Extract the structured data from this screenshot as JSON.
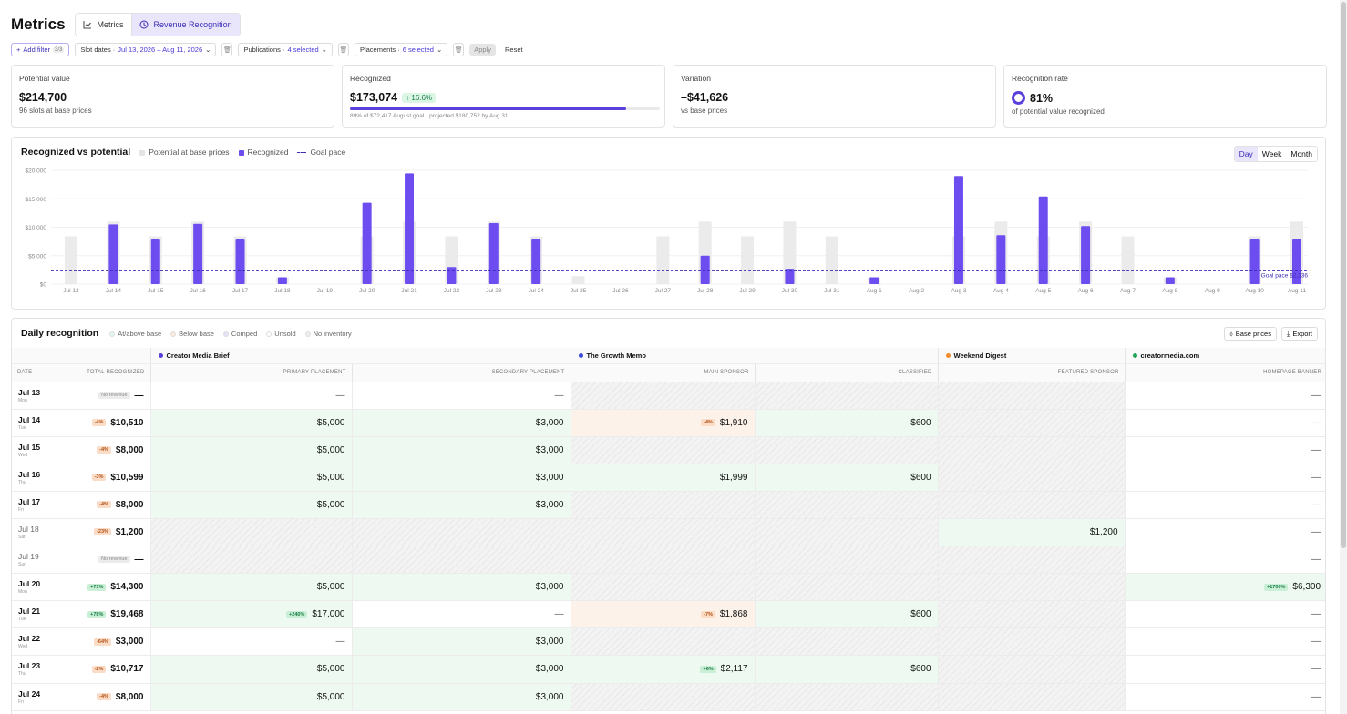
{
  "header": {
    "title": "Metrics",
    "tabs": [
      {
        "label": "Metrics",
        "icon": "line-chart-icon"
      },
      {
        "label": "Revenue Recognition",
        "icon": "clock-icon"
      }
    ]
  },
  "filters": {
    "add_filter": "Add filter",
    "add_filter_count": "3/3",
    "slot_dates_label": "Slot dates ·",
    "slot_dates_value": "Jul 13, 2026 – Aug 11, 2026",
    "publications_label": "Publications ·",
    "publications_value": "4 selected",
    "placements_label": "Placements ·",
    "placements_value": "6 selected",
    "apply": "Apply",
    "reset": "Reset"
  },
  "kpis": {
    "potential": {
      "label": "Potential value",
      "value": "$214,700",
      "sub": "96 slots at base prices"
    },
    "recognized": {
      "label": "Recognized",
      "value": "$173,074",
      "change": "↑ 16.6%",
      "progress": 0.89,
      "note": "89% of $72,417 August goal · projected $180,752 by Aug 31"
    },
    "variation": {
      "label": "Variation",
      "value": "–$41,626",
      "sub": "vs base prices"
    },
    "rate": {
      "label": "Recognition rate",
      "value": "81%",
      "sub": "of potential value recognized"
    }
  },
  "chart_header": {
    "title": "Recognized vs potential",
    "legend": {
      "potential": "Potential at base prices",
      "recognized": "Recognized",
      "goal": "Goal pace"
    },
    "period": {
      "day": "Day",
      "week": "Week",
      "month": "Month"
    }
  },
  "chart_data": {
    "type": "bar",
    "categories": [
      "Jul 13",
      "Jul 14",
      "Jul 15",
      "Jul 16",
      "Jul 17",
      "Jul 18",
      "Jul 19",
      "Jul 20",
      "Jul 21",
      "Jul 22",
      "Jul 23",
      "Jul 24",
      "Jul 25",
      "Jul 26",
      "Jul 27",
      "Jul 28",
      "Jul 29",
      "Jul 30",
      "Jul 31",
      "Aug 1",
      "Aug 2",
      "Aug 3",
      "Aug 4",
      "Aug 5",
      "Aug 6",
      "Aug 7",
      "Aug 8",
      "Aug 9",
      "Aug 10",
      "Aug 11"
    ],
    "series": [
      {
        "name": "Potential at base prices",
        "values": [
          8400,
          11000,
          8400,
          11000,
          8400,
          1200,
          0,
          8400,
          11000,
          8400,
          11000,
          8400,
          1400,
          0,
          8400,
          11000,
          8400,
          11000,
          8400,
          1200,
          0,
          8400,
          11000,
          8400,
          11000,
          8400,
          1200,
          0,
          8400,
          11000
        ]
      },
      {
        "name": "Recognized",
        "values": [
          0,
          10510,
          8000,
          10599,
          8000,
          1200,
          0,
          14300,
          19468,
          3000,
          10717,
          8000,
          0,
          0,
          0,
          5000,
          0,
          2700,
          0,
          1200,
          0,
          19000,
          8600,
          15400,
          10200,
          0,
          1200,
          0,
          8000,
          8000
        ]
      }
    ],
    "goal_pace": 2336,
    "goal_label": "Goal pace $2,336",
    "y_ticks": [
      "$0",
      "$5,000",
      "$10,000",
      "$15,000",
      "$20,000"
    ],
    "ylim": [
      0,
      20000
    ],
    "colors": {
      "potential": "#ebebeb",
      "recognized": "#6d4cf0",
      "goal": "#3d2eb8"
    }
  },
  "table": {
    "title": "Daily recognition",
    "legend": [
      "At/above base",
      "Below base",
      "Comped",
      "Unsold",
      "No inventory"
    ],
    "buttons": {
      "base_prices": "Base prices",
      "export": "Export"
    },
    "publications": [
      {
        "name": "Creator Media Brief",
        "color": "#5b3fdc"
      },
      {
        "name": "The Growth Memo",
        "color": "#3b4bd8"
      },
      {
        "name": "Weekend Digest",
        "color": "#f28c28"
      },
      {
        "name": "creatormedia.com",
        "color": "#22a55b"
      }
    ],
    "columns": [
      "Date",
      "Total recognized",
      "Primary placement",
      "Secondary placement",
      "Main sponsor",
      "Classified",
      "Featured sponsor",
      "Homepage banner"
    ],
    "rows": [
      {
        "date": "Jul 13",
        "dow": "Mon",
        "tag": "No revenue",
        "tagType": "none",
        "total": "—",
        "cells": [
          [
            "—",
            "white"
          ],
          [
            "—",
            "white"
          ],
          [
            "",
            "hatch"
          ],
          [
            "",
            "hatch"
          ],
          [
            "",
            "hatch"
          ],
          [
            "—",
            "white"
          ]
        ]
      },
      {
        "date": "Jul 14",
        "dow": "Tue",
        "tag": "-4%",
        "tagType": "down",
        "total": "$10,510",
        "cells": [
          [
            "$5,000",
            "green"
          ],
          [
            "$3,000",
            "green"
          ],
          [
            "$1,910",
            "orange",
            "-4%"
          ],
          [
            "$600",
            "green"
          ],
          [
            "",
            "hatch"
          ],
          [
            "—",
            "white"
          ]
        ]
      },
      {
        "date": "Jul 15",
        "dow": "Wed",
        "tag": "-4%",
        "tagType": "down",
        "total": "$8,000",
        "cells": [
          [
            "$5,000",
            "green"
          ],
          [
            "$3,000",
            "green"
          ],
          [
            "",
            "hatch"
          ],
          [
            "",
            "hatch"
          ],
          [
            "",
            "hatch"
          ],
          [
            "—",
            "white"
          ]
        ]
      },
      {
        "date": "Jul 16",
        "dow": "Thu",
        "tag": "-3%",
        "tagType": "down",
        "total": "$10,599",
        "cells": [
          [
            "$5,000",
            "green"
          ],
          [
            "$3,000",
            "green"
          ],
          [
            "$1,999",
            "green"
          ],
          [
            "$600",
            "green"
          ],
          [
            "",
            "hatch"
          ],
          [
            "—",
            "white"
          ]
        ]
      },
      {
        "date": "Jul 17",
        "dow": "Fri",
        "tag": "-4%",
        "tagType": "down",
        "total": "$8,000",
        "cells": [
          [
            "$5,000",
            "green"
          ],
          [
            "$3,000",
            "green"
          ],
          [
            "",
            "hatch"
          ],
          [
            "",
            "hatch"
          ],
          [
            "",
            "hatch"
          ],
          [
            "—",
            "white"
          ]
        ]
      },
      {
        "date": "Jul 18",
        "dow": "Sat",
        "tag": "-23%",
        "tagType": "down",
        "total": "$1,200",
        "muted": true,
        "cells": [
          [
            "",
            "hatch"
          ],
          [
            "",
            "hatch"
          ],
          [
            "",
            "hatch"
          ],
          [
            "",
            "hatch"
          ],
          [
            "$1,200",
            "green"
          ],
          [
            "—",
            "white"
          ]
        ]
      },
      {
        "date": "Jul 19",
        "dow": "Sun",
        "tag": "No revenue",
        "tagType": "none",
        "total": "—",
        "muted": true,
        "cells": [
          [
            "",
            "hatch"
          ],
          [
            "",
            "hatch"
          ],
          [
            "",
            "hatch"
          ],
          [
            "",
            "hatch"
          ],
          [
            "",
            "hatch"
          ],
          [
            "—",
            "white"
          ]
        ]
      },
      {
        "date": "Jul 20",
        "dow": "Mon",
        "tag": "+71%",
        "tagType": "up",
        "total": "$14,300",
        "cells": [
          [
            "$5,000",
            "green"
          ],
          [
            "$3,000",
            "green"
          ],
          [
            "",
            "hatch"
          ],
          [
            "",
            "hatch"
          ],
          [
            "",
            "hatch"
          ],
          [
            "$6,300",
            "green",
            "+1700%"
          ]
        ]
      },
      {
        "date": "Jul 21",
        "dow": "Tue",
        "tag": "+78%",
        "tagType": "up",
        "total": "$19,468",
        "cells": [
          [
            "$17,000",
            "green",
            "+240%"
          ],
          [
            "—",
            "white"
          ],
          [
            "$1,868",
            "orange",
            "-7%"
          ],
          [
            "$600",
            "green"
          ],
          [
            "",
            "hatch"
          ],
          [
            "—",
            "white"
          ]
        ]
      },
      {
        "date": "Jul 22",
        "dow": "Wed",
        "tag": "-64%",
        "tagType": "down",
        "total": "$3,000",
        "cells": [
          [
            "—",
            "white"
          ],
          [
            "$3,000",
            "green"
          ],
          [
            "",
            "hatch"
          ],
          [
            "",
            "hatch"
          ],
          [
            "",
            "hatch"
          ],
          [
            "—",
            "white"
          ]
        ]
      },
      {
        "date": "Jul 23",
        "dow": "Thu",
        "tag": "-2%",
        "tagType": "down",
        "total": "$10,717",
        "cells": [
          [
            "$5,000",
            "green"
          ],
          [
            "$3,000",
            "green"
          ],
          [
            "$2,117",
            "green",
            "+6%"
          ],
          [
            "$600",
            "green"
          ],
          [
            "",
            "hatch"
          ],
          [
            "—",
            "white"
          ]
        ]
      },
      {
        "date": "Jul 24",
        "dow": "Fri",
        "tag": "-4%",
        "tagType": "down",
        "total": "$8,000",
        "cells": [
          [
            "$5,000",
            "green"
          ],
          [
            "$3,000",
            "green"
          ],
          [
            "",
            "hatch"
          ],
          [
            "",
            "hatch"
          ],
          [
            "",
            "hatch"
          ],
          [
            "—",
            "white"
          ]
        ]
      }
    ]
  }
}
